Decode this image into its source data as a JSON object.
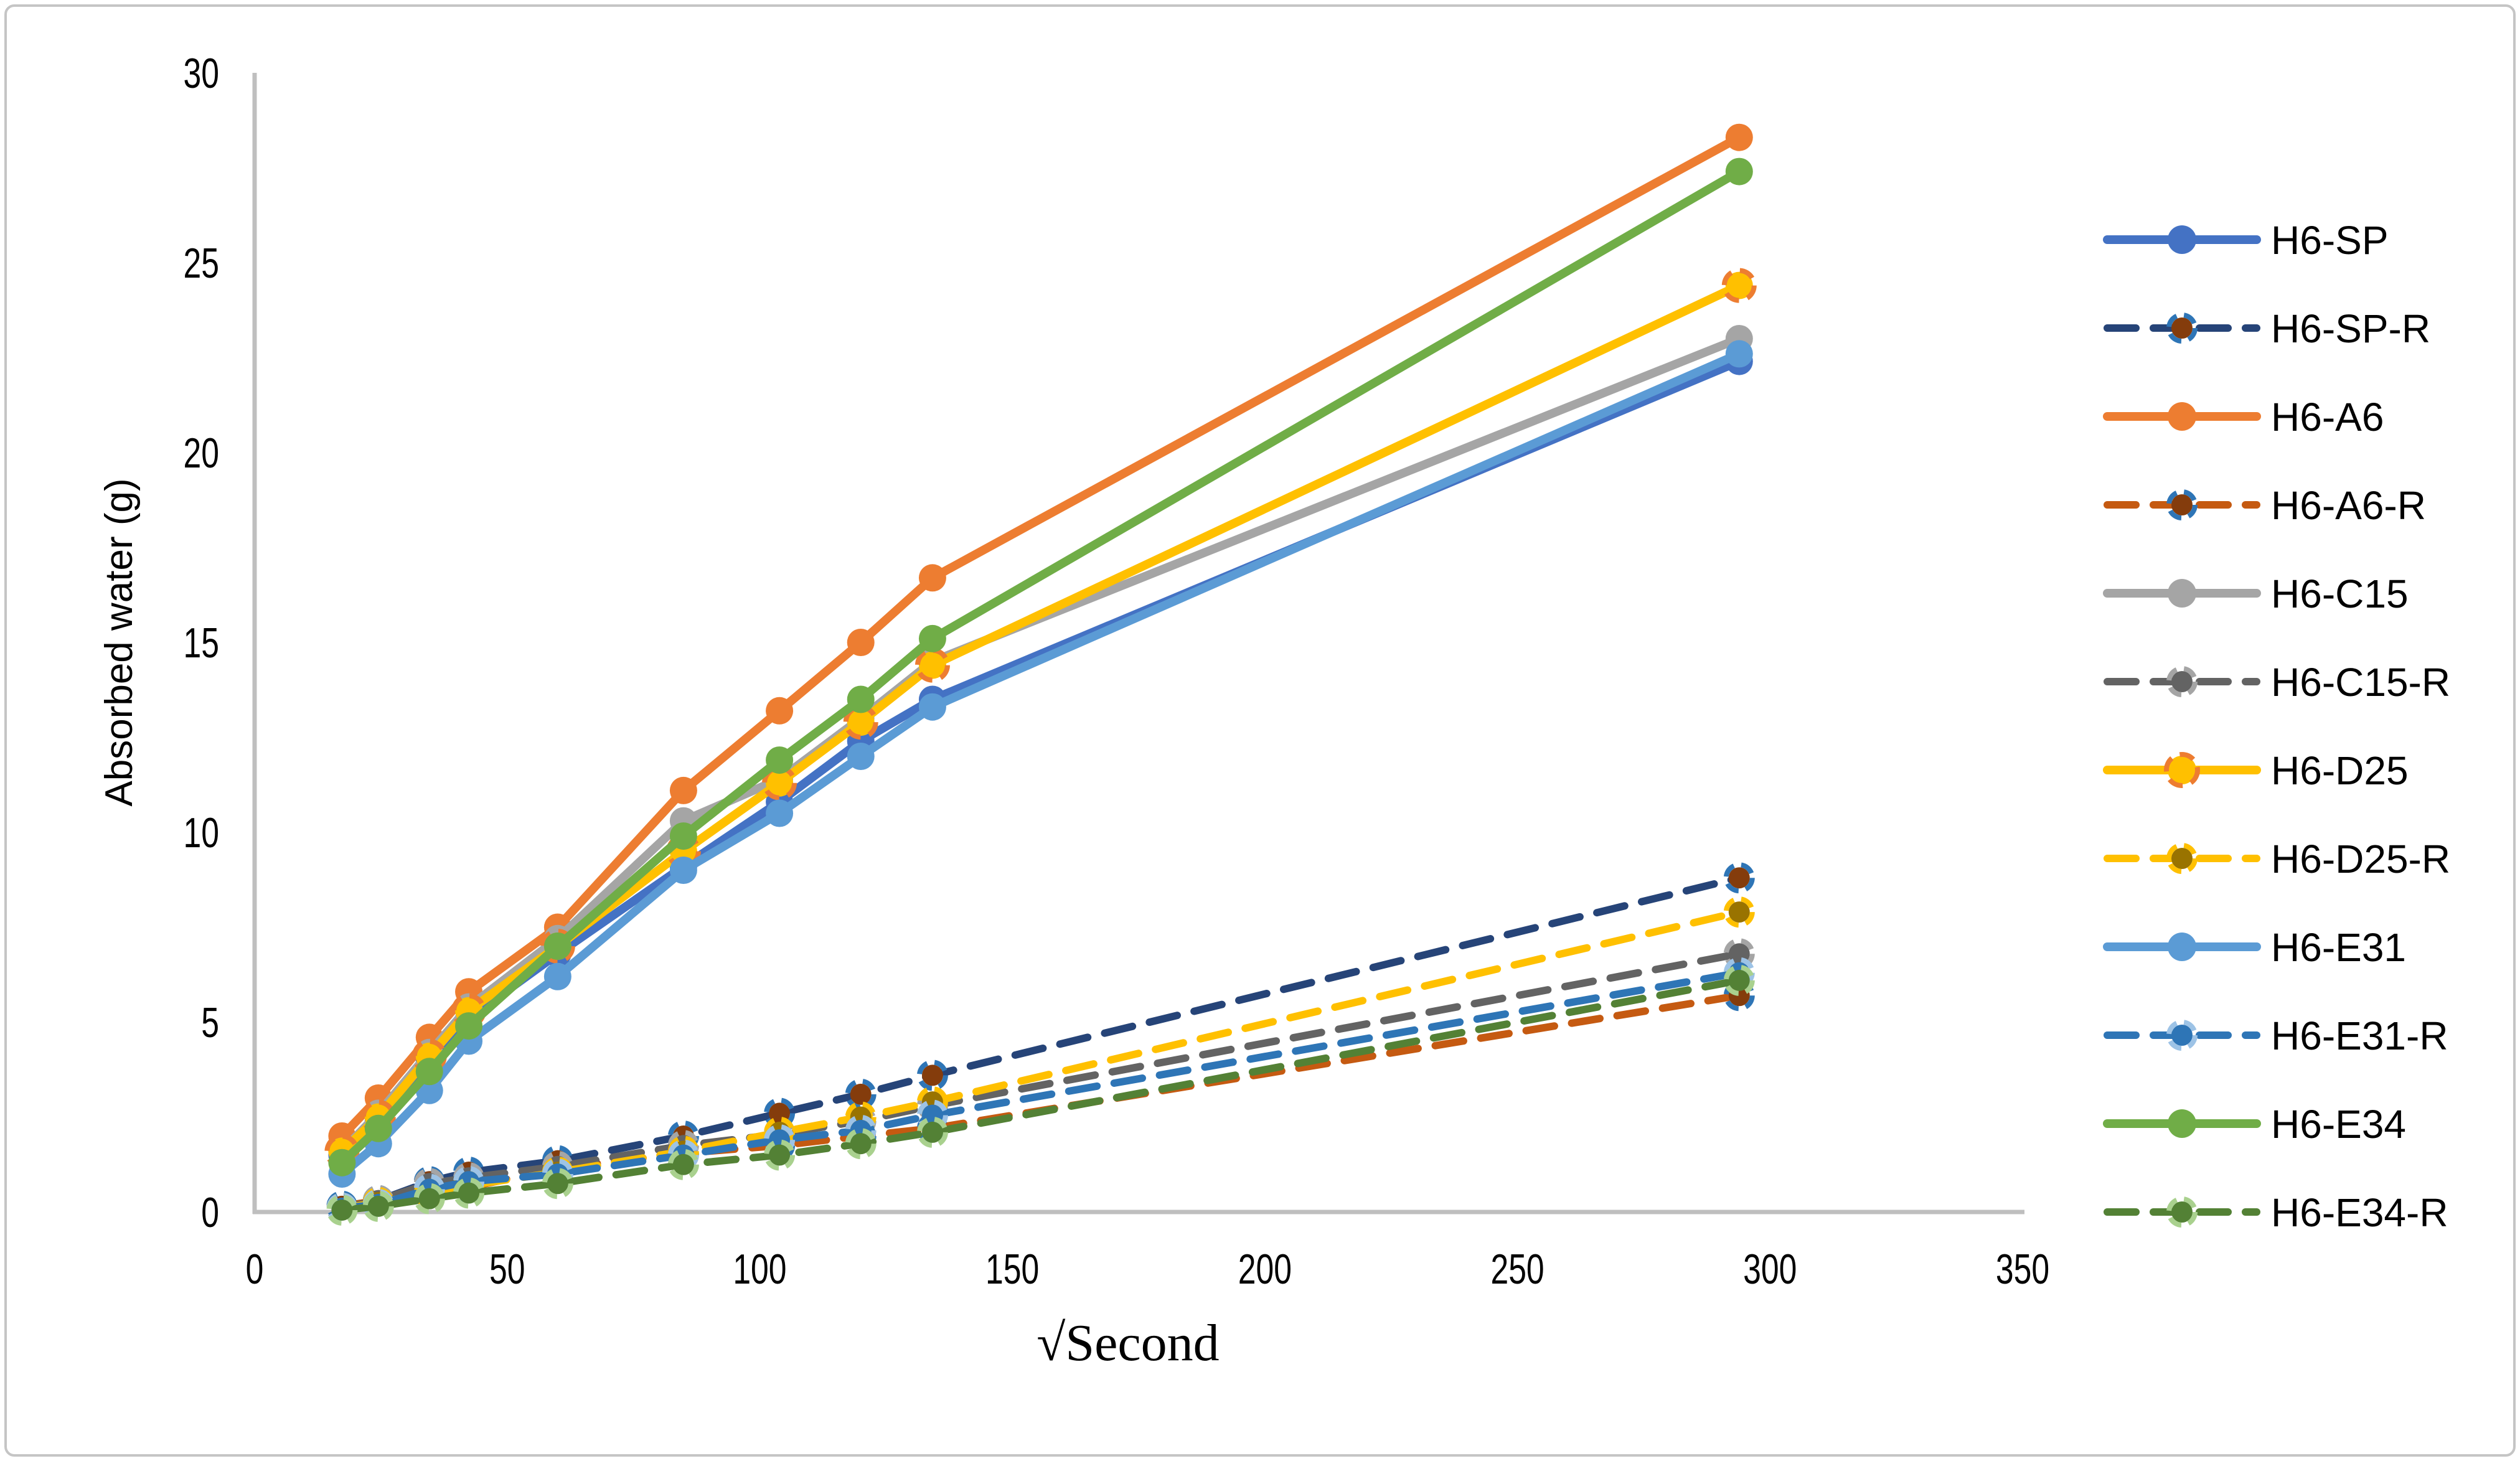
{
  "chart_data": {
    "type": "line",
    "title": "",
    "xlabel": "√Second",
    "ylabel": "Absorbed water (g)",
    "xlim": [
      0,
      350
    ],
    "ylim": [
      0,
      30
    ],
    "x_ticks": [
      "0",
      "50",
      "100",
      "150",
      "200",
      "250",
      "300",
      "350"
    ],
    "y_ticks": [
      "0",
      "5",
      "10",
      "15",
      "20",
      "25",
      "30"
    ],
    "grid": false,
    "legend_position": "right",
    "axis_color": "#BFBFBF",
    "text_color": "#000000",
    "x": [
      17.3,
      24.5,
      34.6,
      42.4,
      60.0,
      84.9,
      103.9,
      120.0,
      134.2,
      293.9
    ],
    "series": [
      {
        "name": "H6-SP",
        "dashed": false,
        "color": "#4472C4",
        "marker_fill": "#4472C4",
        "marker_ring": "",
        "values": [
          1.5,
          2.4,
          4.0,
          5.1,
          6.8,
          9.1,
          10.8,
          12.4,
          13.5,
          22.4
        ]
      },
      {
        "name": "H6-SP-R",
        "dashed": true,
        "color": "#264478",
        "marker_fill": "#843C0C",
        "marker_ring": "#2E75B6",
        "values": [
          0.15,
          0.3,
          0.8,
          1.05,
          1.35,
          2.0,
          2.6,
          3.1,
          3.6,
          8.8
        ]
      },
      {
        "name": "H6-A6",
        "dashed": false,
        "color": "#ED7D31",
        "marker_fill": "#ED7D31",
        "marker_ring": "",
        "values": [
          2.0,
          3.0,
          4.6,
          5.8,
          7.5,
          11.1,
          13.2,
          15.0,
          16.7,
          28.3
        ]
      },
      {
        "name": "H6-A6-R",
        "dashed": true,
        "color": "#C55A11",
        "marker_fill": "#843C0C",
        "marker_ring": "#2E75B6",
        "values": [
          0.15,
          0.3,
          0.5,
          0.65,
          1.15,
          1.55,
          1.75,
          2.0,
          2.2,
          5.7
        ]
      },
      {
        "name": "H6-C15",
        "dashed": false,
        "color": "#A5A5A5",
        "marker_fill": "#A5A5A5",
        "marker_ring": "",
        "values": [
          1.6,
          2.6,
          4.2,
          5.4,
          7.2,
          10.3,
          11.4,
          13.0,
          14.5,
          23.0
        ]
      },
      {
        "name": "H6-C15-R",
        "dashed": true,
        "color": "#636363",
        "marker_fill": "#636363",
        "marker_ring": "#A5A5A5",
        "values": [
          0.1,
          0.3,
          0.75,
          0.9,
          1.2,
          1.75,
          2.05,
          2.4,
          2.8,
          6.8
        ]
      },
      {
        "name": "H6-D25",
        "dashed": false,
        "color": "#FFC000",
        "marker_fill": "#FFC000",
        "marker_ring": "#ED7D31",
        "values": [
          1.6,
          2.5,
          4.1,
          5.3,
          7.0,
          9.5,
          11.3,
          12.9,
          14.4,
          24.4
        ]
      },
      {
        "name": "H6-D25-R",
        "dashed": true,
        "color": "#FFC000",
        "marker_fill": "#997300",
        "marker_ring": "#FFC000",
        "values": [
          0.1,
          0.25,
          0.5,
          0.7,
          1.05,
          1.6,
          2.1,
          2.5,
          2.9,
          7.9
        ]
      },
      {
        "name": "H6-E31",
        "dashed": false,
        "color": "#5B9BD5",
        "marker_fill": "#5B9BD5",
        "marker_ring": "",
        "values": [
          1.0,
          1.8,
          3.2,
          4.5,
          6.2,
          9.0,
          10.5,
          12.0,
          13.3,
          22.6
        ]
      },
      {
        "name": "H6-E31-R",
        "dashed": true,
        "color": "#2E75B6",
        "marker_fill": "#2E75B6",
        "marker_ring": "#9DC3E6",
        "values": [
          0.1,
          0.2,
          0.6,
          0.8,
          1.0,
          1.5,
          1.9,
          2.15,
          2.55,
          6.3
        ]
      },
      {
        "name": "H6-E34",
        "dashed": false,
        "color": "#70AD47",
        "marker_fill": "#70AD47",
        "marker_ring": "",
        "values": [
          1.3,
          2.2,
          3.7,
          4.9,
          7.0,
          9.9,
          11.9,
          13.5,
          15.1,
          27.4
        ]
      },
      {
        "name": "H6-E34-R",
        "dashed": true,
        "color": "#538135",
        "marker_fill": "#538135",
        "marker_ring": "#A9D18E",
        "values": [
          0.05,
          0.15,
          0.35,
          0.5,
          0.75,
          1.25,
          1.5,
          1.8,
          2.1,
          6.1
        ]
      }
    ]
  },
  "frame": {
    "border_color": "#C5C5C5"
  }
}
